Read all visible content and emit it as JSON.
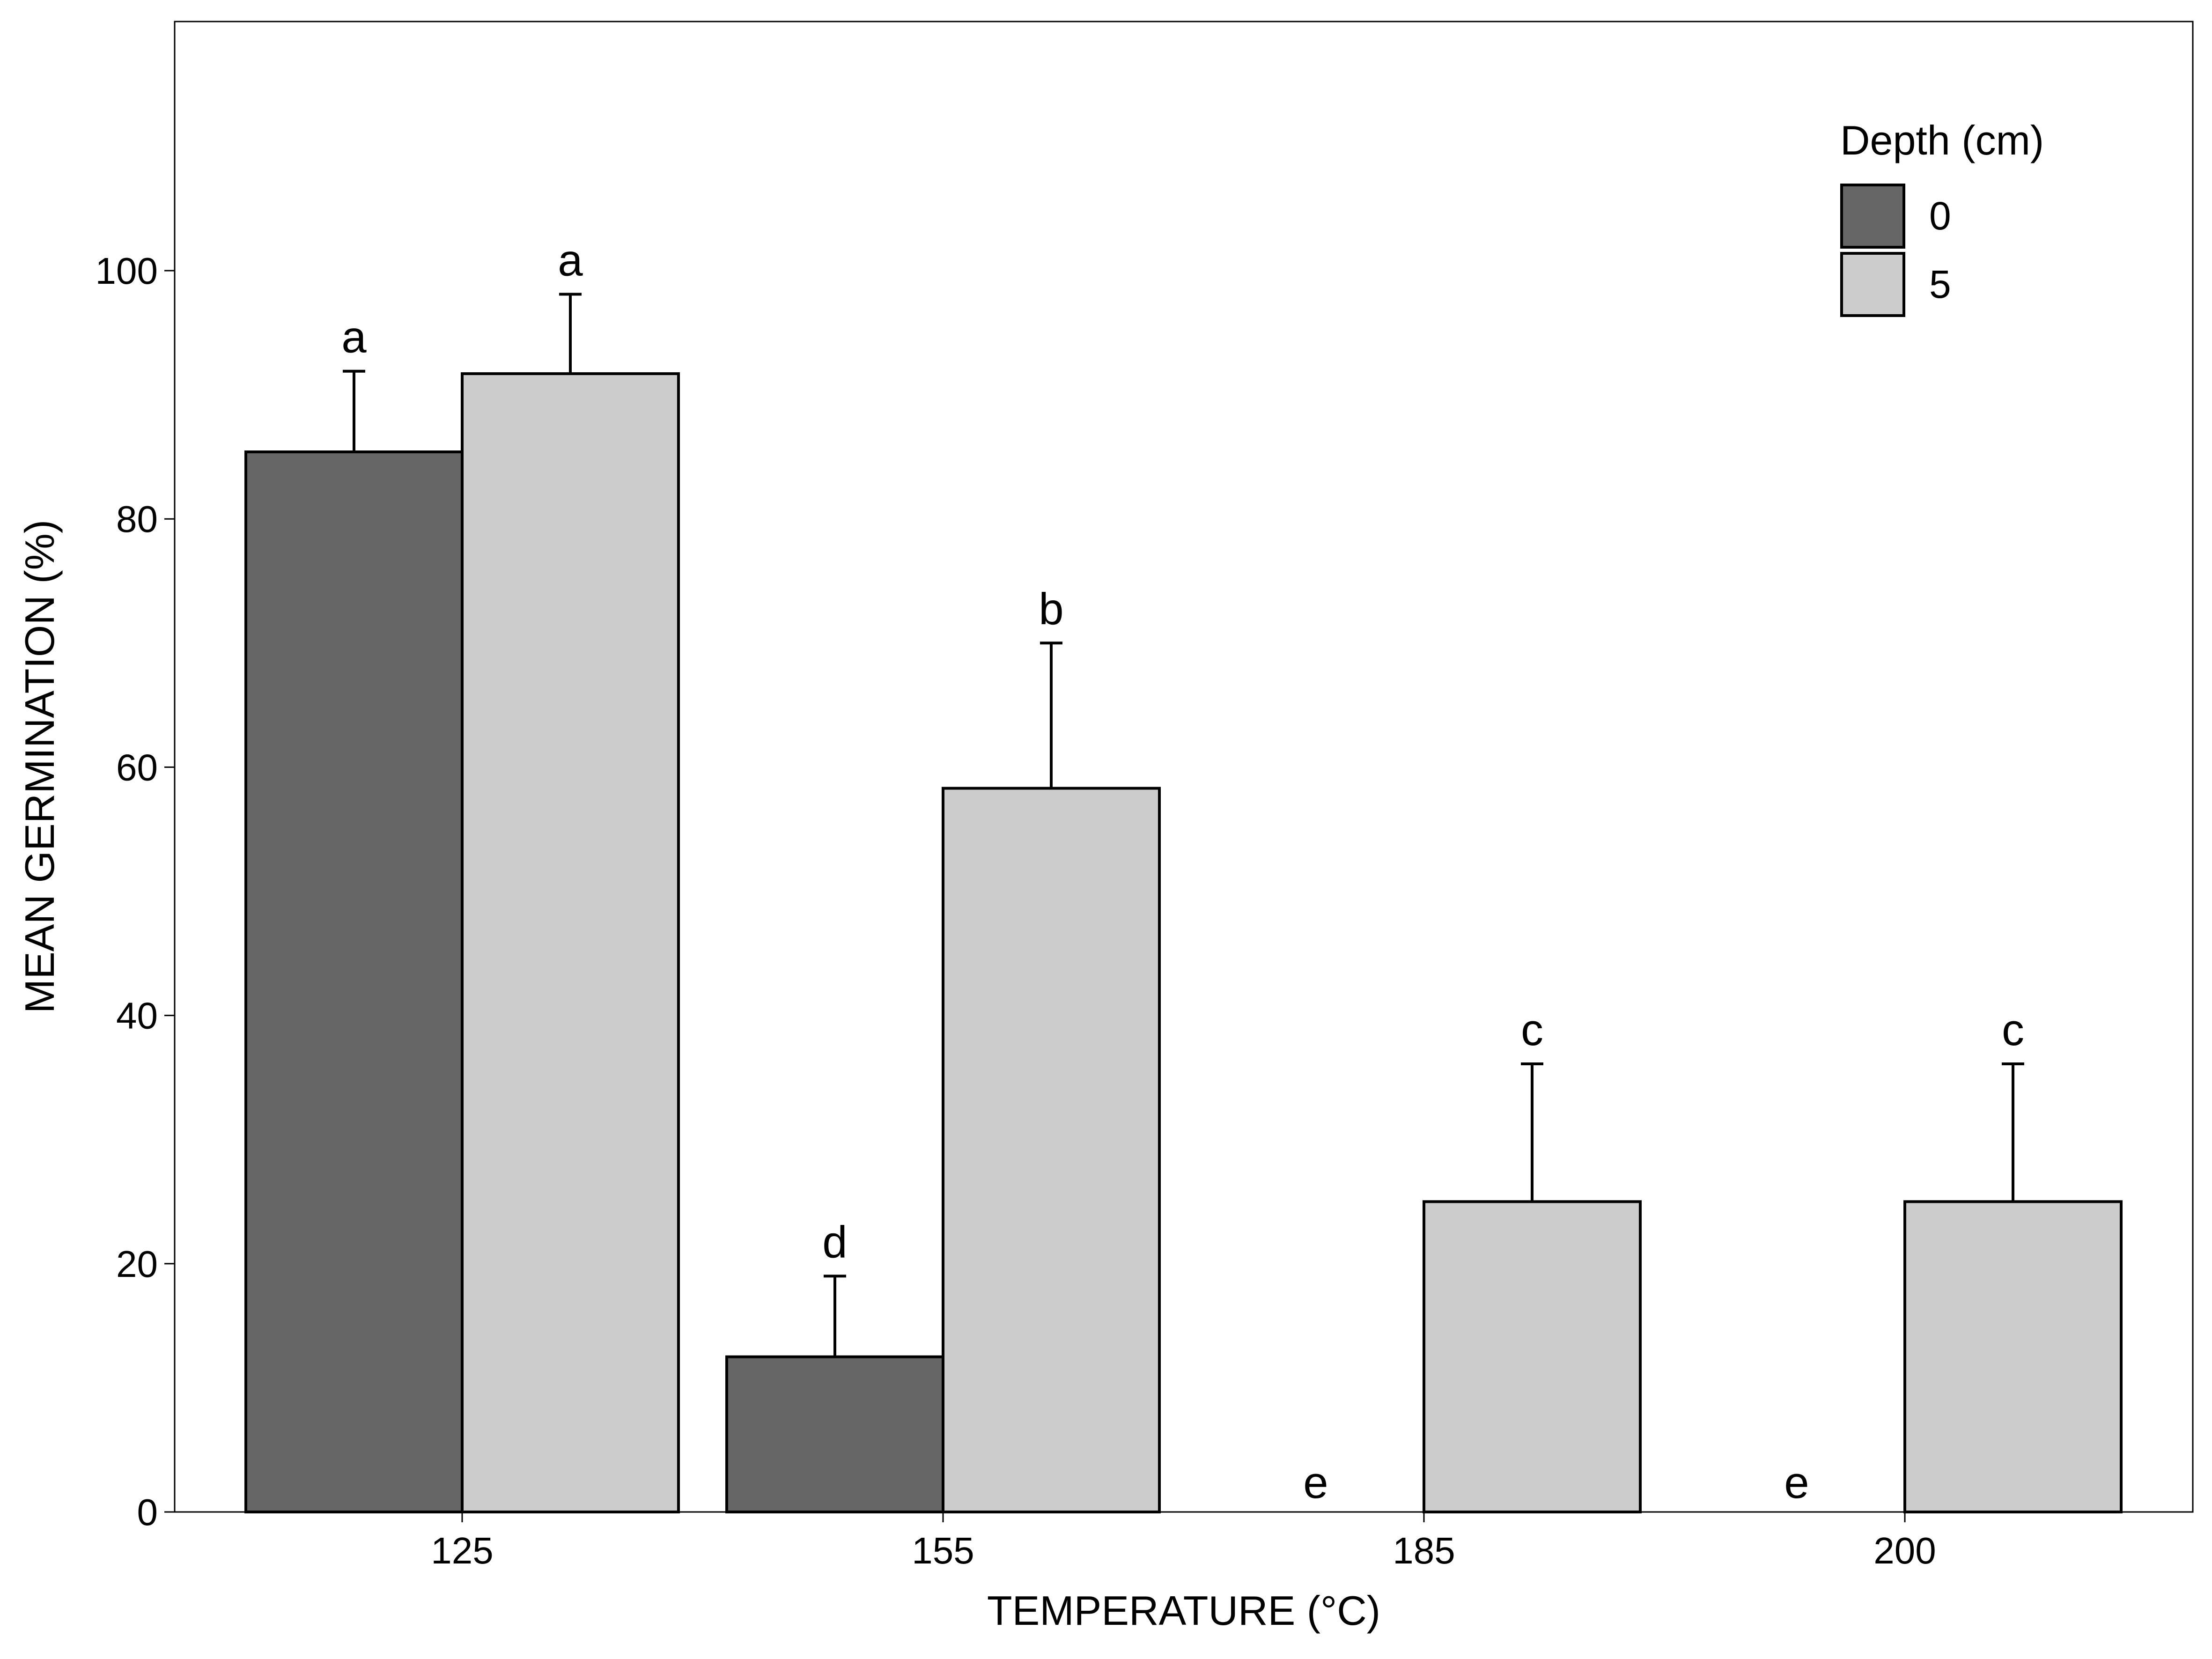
{
  "chart_data": {
    "type": "bar",
    "xlabel": "TEMPERATURE (°C)",
    "ylabel": "MEAN GERMINATION (%)",
    "categories": [
      "125",
      "155",
      "185",
      "200"
    ],
    "ylim": [
      0,
      120
    ],
    "yticks": [
      0,
      20,
      40,
      60,
      80,
      100
    ],
    "grid": false,
    "legend": {
      "title": "Depth (cm)",
      "position": "top-right"
    },
    "series": [
      {
        "name": "0",
        "color": "#666666",
        "values": [
          85.4,
          12.5,
          0,
          0
        ],
        "errors": [
          6.5,
          6.5,
          0,
          0
        ],
        "letters": [
          "a",
          "d",
          "e",
          "e"
        ]
      },
      {
        "name": "5",
        "color": "#cccccc",
        "values": [
          91.7,
          58.3,
          25,
          25
        ],
        "errors": [
          6.4,
          11.7,
          11.1,
          11.1
        ],
        "letters": [
          "a",
          "b",
          "c",
          "c"
        ]
      }
    ]
  }
}
